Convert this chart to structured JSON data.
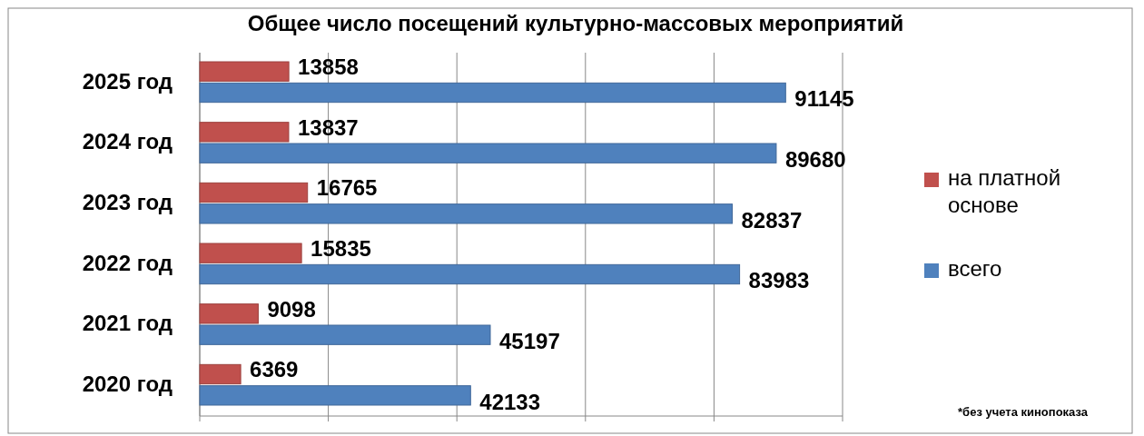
{
  "chart_data": {
    "type": "bar",
    "orientation": "horizontal",
    "title": "Общее число посещений культурно-массовых мероприятий",
    "categories": [
      "2025 год",
      "2024 год",
      "2023 год",
      "2022 год",
      "2021 год",
      "2020 год"
    ],
    "series": [
      {
        "name": "на платной основе",
        "color": "#c0504d",
        "values": [
          13858,
          13837,
          16765,
          15835,
          9098,
          6369
        ]
      },
      {
        "name": "всего",
        "color": "#4f81bd",
        "values": [
          91145,
          89680,
          82837,
          83983,
          45197,
          42133
        ]
      }
    ],
    "xlim": [
      0,
      100000
    ],
    "xticks": [
      {
        "value": 0,
        "label": null
      },
      {
        "value": 20000,
        "label": null
      },
      {
        "value": 40000,
        "label": null
      },
      {
        "value": 60000,
        "label": null
      },
      {
        "value": 80000,
        "label": null
      },
      {
        "value": 100000,
        "label": null
      }
    ],
    "tick_labels": "y",
    "grid": "x",
    "legend": "right",
    "data_labels": true,
    "annotations": [
      "*без учета кинопоказа"
    ]
  }
}
